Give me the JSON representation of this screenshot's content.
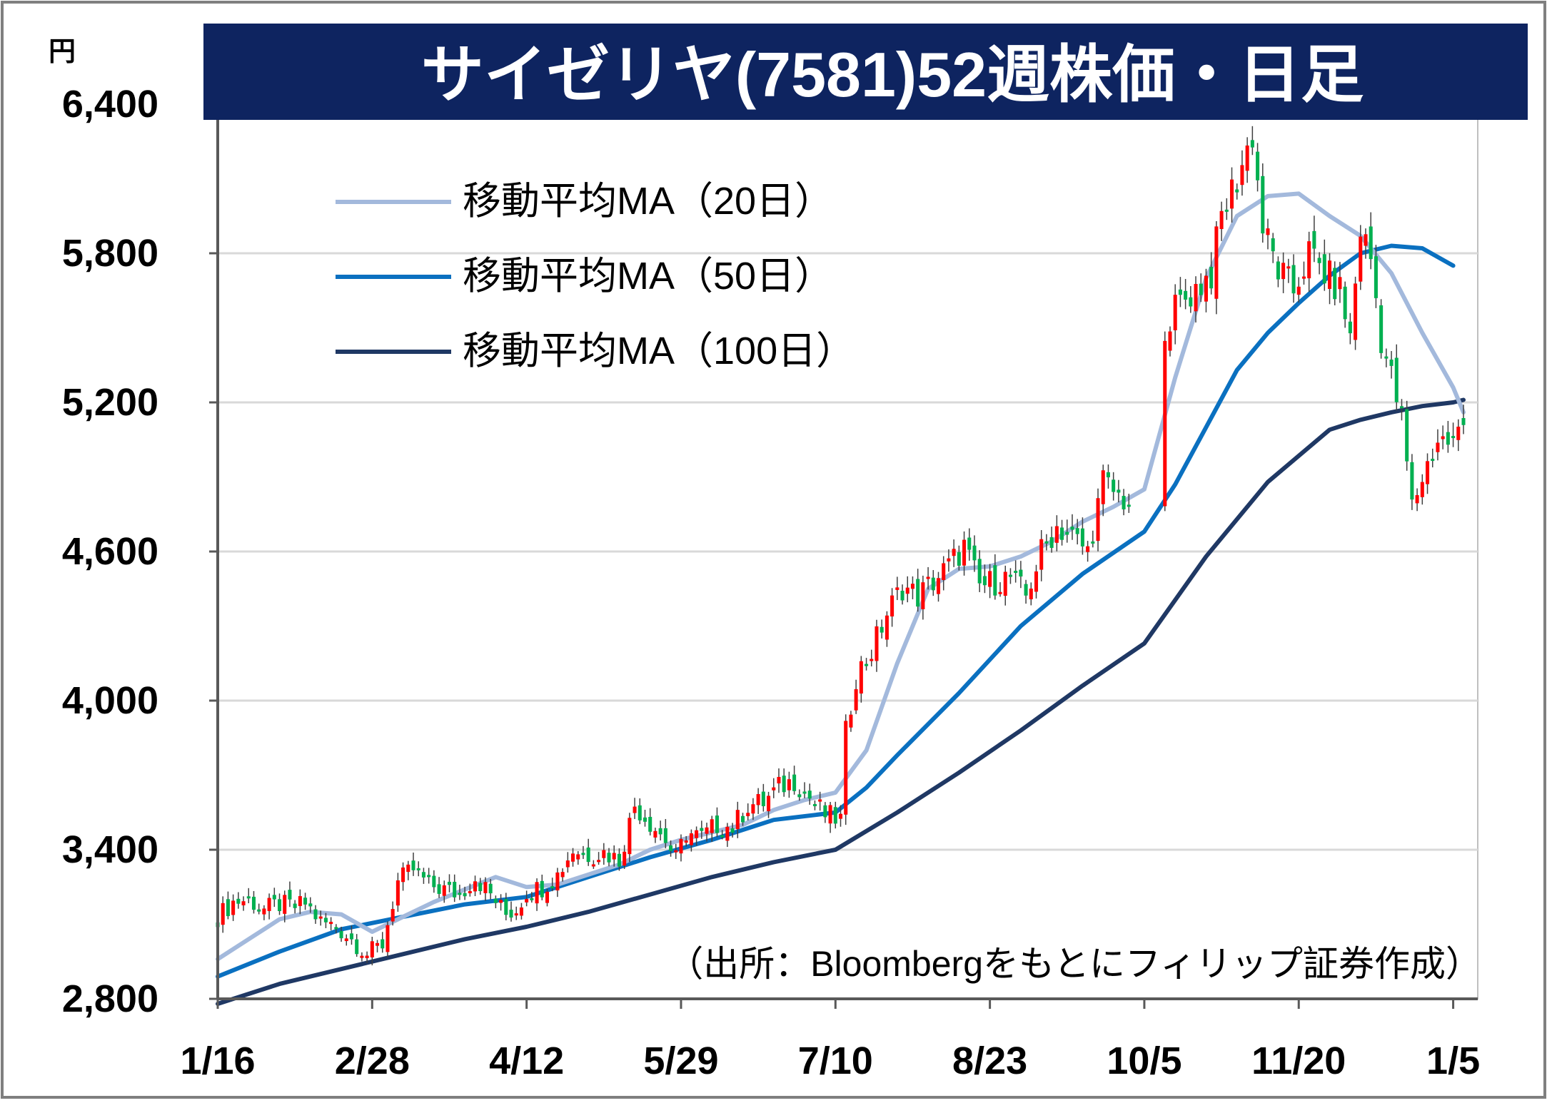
{
  "chart_data": {
    "type": "candlestick",
    "title": "サイゼリヤ(7581)52週株価・日足",
    "ylabel": "円",
    "ylim": [
      2800,
      6400
    ],
    "yticks": [
      {
        "value": 2800,
        "label": "2,800"
      },
      {
        "value": 3400,
        "label": "3,400"
      },
      {
        "value": 4000,
        "label": "4,000"
      },
      {
        "value": 4600,
        "label": "4,600"
      },
      {
        "value": 5200,
        "label": "5,200"
      },
      {
        "value": 5800,
        "label": "5,800"
      },
      {
        "value": 6400,
        "label": "6,400"
      }
    ],
    "xticks": [
      {
        "index": 0,
        "label": "1/16"
      },
      {
        "index": 30,
        "label": "2/28"
      },
      {
        "index": 60,
        "label": "4/12"
      },
      {
        "index": 90,
        "label": "5/29"
      },
      {
        "index": 120,
        "label": "7/10"
      },
      {
        "index": 150,
        "label": "8/23"
      },
      {
        "index": 180,
        "label": "10/5"
      },
      {
        "index": 210,
        "label": "11/20"
      },
      {
        "index": 240,
        "label": "1/5"
      }
    ],
    "grid": true,
    "legend_position": "top-left",
    "colors": {
      "up": "#ff0000",
      "down": "#00b050",
      "ma20": "#a3b9dc",
      "ma50": "#0a70c0",
      "ma100": "#1f3864",
      "title_bg": "#0e2460",
      "title_text": "#ffffff"
    },
    "series_labels": {
      "ma20": "移動平均MA（20日）",
      "ma50": "移動平均MA（50日）",
      "ma100": "移動平均MA（100日）"
    },
    "anchors": [
      [
        0,
        3130
      ],
      [
        3,
        3190
      ],
      [
        6,
        3200
      ],
      [
        9,
        3160
      ],
      [
        12,
        3180
      ],
      [
        15,
        3170
      ],
      [
        17,
        3185
      ],
      [
        20,
        3110
      ],
      [
        23,
        3090
      ],
      [
        26,
        3040
      ],
      [
        29,
        2980
      ],
      [
        32,
        3020
      ],
      [
        35,
        3270
      ],
      [
        38,
        3320
      ],
      [
        41,
        3260
      ],
      [
        44,
        3240
      ],
      [
        47,
        3220
      ],
      [
        50,
        3290
      ],
      [
        53,
        3220
      ],
      [
        56,
        3140
      ],
      [
        58,
        3160
      ],
      [
        60,
        3230
      ],
      [
        63,
        3250
      ],
      [
        66,
        3300
      ],
      [
        69,
        3400
      ],
      [
        72,
        3380
      ],
      [
        75,
        3390
      ],
      [
        78,
        3360
      ],
      [
        81,
        3580
      ],
      [
        84,
        3510
      ],
      [
        87,
        3440
      ],
      [
        89,
        3360
      ],
      [
        91,
        3470
      ],
      [
        94,
        3450
      ],
      [
        97,
        3500
      ],
      [
        100,
        3490
      ],
      [
        103,
        3580
      ],
      [
        106,
        3590
      ],
      [
        109,
        3650
      ],
      [
        112,
        3680
      ],
      [
        115,
        3610
      ],
      [
        118,
        3540
      ],
      [
        121,
        3520
      ],
      [
        122,
        3870
      ],
      [
        124,
        4100
      ],
      [
        127,
        4200
      ],
      [
        130,
        4350
      ],
      [
        133,
        4460
      ],
      [
        136,
        4420
      ],
      [
        139,
        4480
      ],
      [
        142,
        4540
      ],
      [
        145,
        4620
      ],
      [
        148,
        4460
      ],
      [
        151,
        4480
      ],
      [
        154,
        4500
      ],
      [
        157,
        4420
      ],
      [
        160,
        4600
      ],
      [
        163,
        4700
      ],
      [
        166,
        4660
      ],
      [
        169,
        4600
      ],
      [
        172,
        4880
      ],
      [
        175,
        4820
      ],
      [
        178,
        4790
      ],
      [
        181,
        4840
      ],
      [
        183,
        4870
      ],
      [
        184,
        5520
      ],
      [
        187,
        5600
      ],
      [
        190,
        5660
      ],
      [
        193,
        5720
      ],
      [
        195,
        5950
      ],
      [
        198,
        6100
      ],
      [
        201,
        6280
      ],
      [
        203,
        5900
      ],
      [
        206,
        5730
      ],
      [
        209,
        5650
      ],
      [
        212,
        5800
      ],
      [
        215,
        5720
      ],
      [
        218,
        5650
      ],
      [
        220,
        5460
      ],
      [
        222,
        5900
      ],
      [
        224,
        5780
      ],
      [
        226,
        5460
      ],
      [
        228,
        5300
      ],
      [
        230,
        5130
      ],
      [
        232,
        4780
      ],
      [
        234,
        4900
      ],
      [
        237,
        5050
      ],
      [
        240,
        5040
      ],
      [
        242,
        5110
      ]
    ],
    "ma20": [
      [
        0,
        2960
      ],
      [
        6,
        3040
      ],
      [
        12,
        3120
      ],
      [
        18,
        3150
      ],
      [
        24,
        3140
      ],
      [
        30,
        3070
      ],
      [
        36,
        3130
      ],
      [
        42,
        3190
      ],
      [
        48,
        3240
      ],
      [
        54,
        3290
      ],
      [
        60,
        3250
      ],
      [
        66,
        3260
      ],
      [
        72,
        3300
      ],
      [
        78,
        3340
      ],
      [
        84,
        3400
      ],
      [
        90,
        3440
      ],
      [
        96,
        3470
      ],
      [
        102,
        3500
      ],
      [
        108,
        3560
      ],
      [
        114,
        3600
      ],
      [
        120,
        3630
      ],
      [
        126,
        3800
      ],
      [
        132,
        4150
      ],
      [
        138,
        4450
      ],
      [
        144,
        4530
      ],
      [
        150,
        4540
      ],
      [
        156,
        4580
      ],
      [
        162,
        4640
      ],
      [
        168,
        4720
      ],
      [
        174,
        4780
      ],
      [
        180,
        4850
      ],
      [
        186,
        5300
      ],
      [
        192,
        5700
      ],
      [
        198,
        5950
      ],
      [
        204,
        6030
      ],
      [
        210,
        6040
      ],
      [
        216,
        5950
      ],
      [
        222,
        5870
      ],
      [
        228,
        5720
      ],
      [
        234,
        5480
      ],
      [
        240,
        5260
      ],
      [
        242,
        5160
      ]
    ],
    "ma50": [
      [
        0,
        2890
      ],
      [
        12,
        2990
      ],
      [
        24,
        3080
      ],
      [
        36,
        3130
      ],
      [
        48,
        3180
      ],
      [
        60,
        3210
      ],
      [
        72,
        3290
      ],
      [
        84,
        3370
      ],
      [
        96,
        3440
      ],
      [
        108,
        3520
      ],
      [
        120,
        3550
      ],
      [
        126,
        3650
      ],
      [
        132,
        3780
      ],
      [
        144,
        4030
      ],
      [
        156,
        4300
      ],
      [
        168,
        4510
      ],
      [
        180,
        4680
      ],
      [
        186,
        4870
      ],
      [
        192,
        5100
      ],
      [
        198,
        5330
      ],
      [
        204,
        5480
      ],
      [
        210,
        5600
      ],
      [
        216,
        5710
      ],
      [
        222,
        5800
      ],
      [
        228,
        5830
      ],
      [
        234,
        5820
      ],
      [
        240,
        5750
      ]
    ],
    "ma100": [
      [
        0,
        2780
      ],
      [
        12,
        2860
      ],
      [
        24,
        2920
      ],
      [
        36,
        2980
      ],
      [
        48,
        3040
      ],
      [
        60,
        3090
      ],
      [
        72,
        3150
      ],
      [
        84,
        3220
      ],
      [
        96,
        3290
      ],
      [
        108,
        3350
      ],
      [
        120,
        3400
      ],
      [
        132,
        3550
      ],
      [
        144,
        3710
      ],
      [
        156,
        3880
      ],
      [
        168,
        4060
      ],
      [
        180,
        4230
      ],
      [
        192,
        4580
      ],
      [
        204,
        4880
      ],
      [
        216,
        5090
      ],
      [
        222,
        5130
      ],
      [
        228,
        5160
      ],
      [
        234,
        5185
      ],
      [
        240,
        5200
      ],
      [
        242,
        5210
      ]
    ],
    "gaps": [
      [
        184,
        6
      ]
    ],
    "annotation": "（出所：Bloombergをもとにフィリップ証券作成）"
  }
}
